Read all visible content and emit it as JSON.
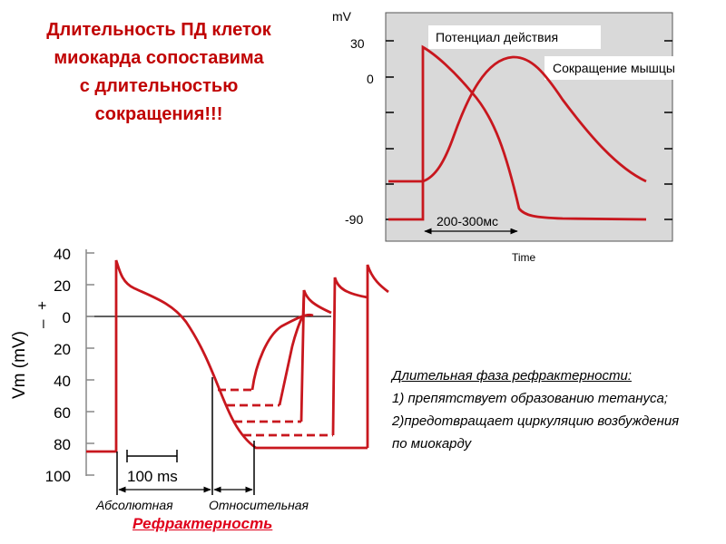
{
  "headline": {
    "line1": "Длительность ПД клеток",
    "line2": "миокарда  сопоставима",
    "line3": "с длительностью",
    "line4": "сокращения!!!"
  },
  "top_plot": {
    "y_unit": "mV",
    "y_ticks": [
      "30",
      "0",
      "-90"
    ],
    "label_ap": "Потенциал действия",
    "label_contraction": "Сокращение мышцы",
    "duration_label": "200-300мс",
    "x_label": "Time"
  },
  "bottom_plot": {
    "y_label": "Vm (mV)",
    "sign_plus": "+",
    "sign_minus": "–",
    "y_ticks": [
      "40",
      "20",
      "0",
      "20",
      "40",
      "60",
      "80",
      "100"
    ],
    "scale_bar": "100 ms"
  },
  "refractory": {
    "absolute": "Абсолютная",
    "relative": "Относительная",
    "title": "Рефрактерность"
  },
  "notes": {
    "heading": "Длительная фаза рефрактерности:",
    "item1": "1) препятствует образованию тетануса;",
    "item2": "2)предотвращает циркуляцию возбуждения",
    "item3": "по миокарду"
  },
  "colors": {
    "curve": "#c8171e",
    "title": "#c00000",
    "panel": "#d9d9d9"
  }
}
